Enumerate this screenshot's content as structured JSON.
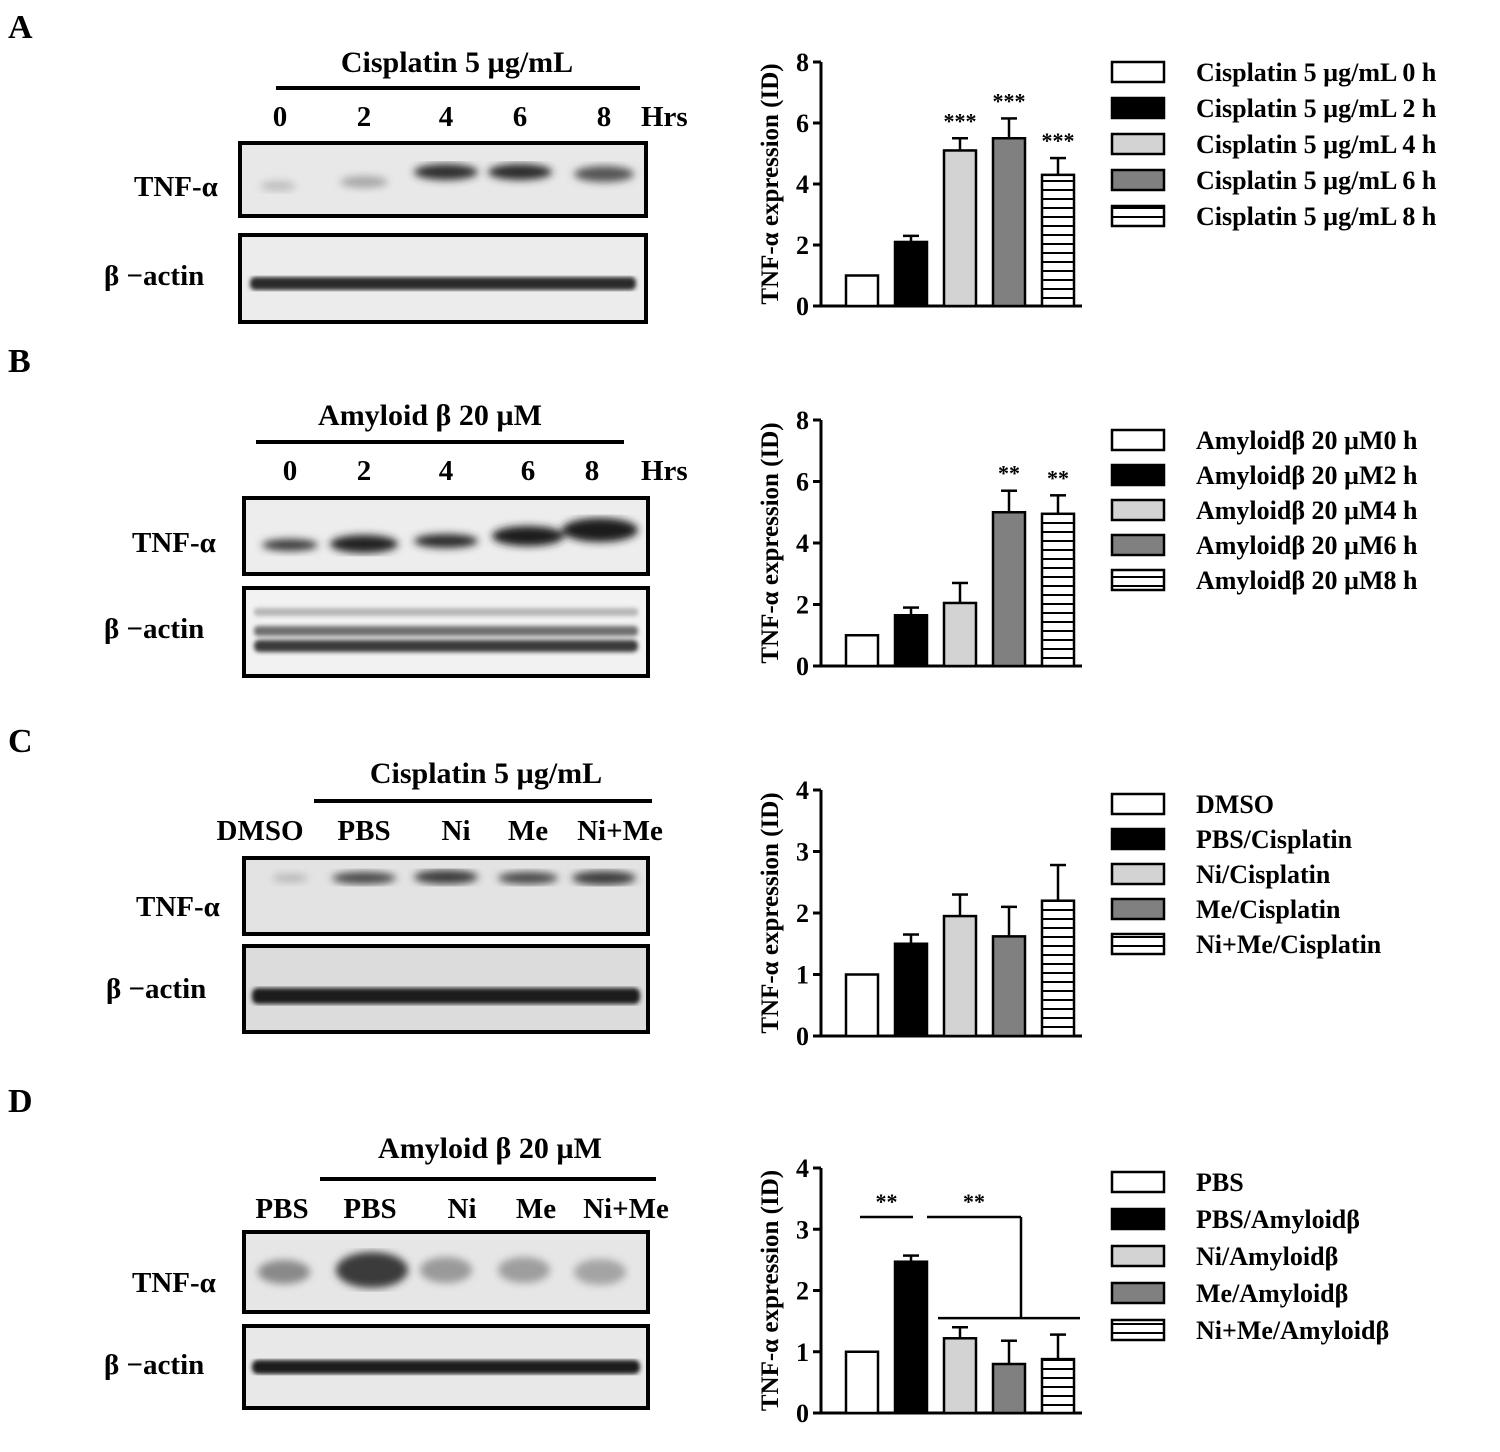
{
  "colors": {
    "white": "#ffffff",
    "black": "#000000",
    "light_gray": "#d3d3d3",
    "dark_gray": "#808080",
    "blot_bg": "#e6e6e6",
    "band": "#2a2a2a"
  },
  "panels": [
    {
      "letter": "A",
      "blot": {
        "treatment": "Cisplatin 5 µg/mL",
        "lanes": [
          "0",
          "2",
          "4",
          "6",
          "8"
        ],
        "unit": "Hrs",
        "row1": "TNF-α",
        "row2": "β −actin"
      }
    },
    {
      "letter": "B",
      "blot": {
        "treatment": "Amyloid  β 20 µM",
        "lanes": [
          "0",
          "2",
          "4",
          "6",
          "8"
        ],
        "unit": "Hrs",
        "row1": "TNF-α",
        "row2": "β −actin"
      }
    },
    {
      "letter": "C",
      "blot": {
        "treatment": "Cisplatin 5 µg/mL",
        "control": "DMSO",
        "lanes": [
          "PBS",
          "Ni",
          "Me",
          "Ni+Me"
        ],
        "row1": "TNF-α",
        "row2": "β −actin"
      }
    },
    {
      "letter": "D",
      "blot": {
        "treatment": "Amyloid  β 20 µM",
        "control": "PBS",
        "lanes": [
          "PBS",
          "Ni",
          "Me",
          "Ni+Me"
        ],
        "row1": "TNF-α",
        "row2": "β −actin"
      }
    }
  ],
  "chart_data": [
    {
      "type": "bar",
      "panel": "A",
      "ylabel": "TNF-α  expression (ID)",
      "ylim": [
        0,
        8
      ],
      "yticks": [
        "0",
        "2",
        "4",
        "6",
        "8"
      ],
      "categories": [
        "Cisplatin 5 µg/mL 0 h",
        "Cisplatin 5 µg/mL 2 h",
        "Cisplatin 5 µg/mL 4 h",
        "Cisplatin 5 µg/mL 6 h",
        "Cisplatin 5 µg/mL 8 h"
      ],
      "values": [
        1.0,
        2.1,
        5.1,
        5.5,
        4.3
      ],
      "errors": [
        0,
        0.2,
        0.4,
        0.65,
        0.55
      ],
      "fills": [
        "white",
        "black",
        "lightgray",
        "darkgray",
        "hstripe"
      ],
      "annotations": [
        "",
        "",
        "***",
        "***",
        "***"
      ],
      "legend": [
        "Cisplatin 5 µg/mL 0 h",
        "Cisplatin 5 µg/mL 2 h",
        "Cisplatin 5 µg/mL 4 h",
        "Cisplatin 5 µg/mL 6 h",
        "Cisplatin 5 µg/mL 8 h"
      ]
    },
    {
      "type": "bar",
      "panel": "B",
      "ylabel": "TNF-α  expression (ID)",
      "ylim": [
        0,
        8
      ],
      "yticks": [
        "0",
        "2",
        "4",
        "6",
        "8"
      ],
      "categories": [
        "Amyloid β 20 µM 0 h",
        "Amyloid β 20 µM 2 h",
        "Amyloid β 20 µM 4 h",
        "Amyloid β 20 µM 6 h",
        "Amyloid β 20 µM 8 h"
      ],
      "values": [
        1.0,
        1.65,
        2.05,
        5.0,
        4.95
      ],
      "errors": [
        0,
        0.25,
        0.65,
        0.7,
        0.6
      ],
      "fills": [
        "white",
        "black",
        "lightgray",
        "darkgray",
        "hstripe"
      ],
      "annotations": [
        "",
        "",
        "",
        "**",
        "**"
      ],
      "legend": [
        "Amyloidβ 20 µM0 h",
        "Amyloidβ 20 µM2 h",
        "Amyloidβ 20 µM4 h",
        "Amyloidβ 20 µM6 h",
        "Amyloidβ 20 µM8 h"
      ]
    },
    {
      "type": "bar",
      "panel": "C",
      "ylabel": "TNF-α  expression (ID)",
      "ylim": [
        0,
        4
      ],
      "yticks": [
        "0",
        "1",
        "2",
        "3",
        "4"
      ],
      "categories": [
        "DMSO",
        "PBS/Cisplatin",
        "Ni/Cisplatin",
        "Me/Cisplatin",
        "Ni+Me/Cisplatin"
      ],
      "values": [
        1.0,
        1.5,
        1.95,
        1.62,
        2.2
      ],
      "errors": [
        0,
        0.15,
        0.35,
        0.48,
        0.58
      ],
      "fills": [
        "white",
        "black",
        "lightgray",
        "darkgray",
        "hstripe"
      ],
      "annotations": [
        "",
        "",
        "",
        "",
        ""
      ],
      "legend": [
        "DMSO",
        "PBS/Cisplatin",
        "Ni/Cisplatin",
        "Me/Cisplatin",
        "Ni+Me/Cisplatin"
      ]
    },
    {
      "type": "bar",
      "panel": "D",
      "ylabel": "TNF-α  expression (ID)",
      "ylim": [
        0,
        4
      ],
      "yticks": [
        "0",
        "1",
        "2",
        "3",
        "4"
      ],
      "categories": [
        "PBS",
        "PBS/Amyloid β",
        "Ni/Amyloid β",
        "Me/Amyloid β",
        "Ni+Me/Amyloid β"
      ],
      "values": [
        1.0,
        2.47,
        1.22,
        0.8,
        0.88
      ],
      "errors": [
        0,
        0.1,
        0.18,
        0.38,
        0.4
      ],
      "fills": [
        "white",
        "black",
        "lightgray",
        "darkgray",
        "hstripe"
      ],
      "annotations": [
        "",
        "",
        "",
        "",
        ""
      ],
      "brackets": [
        {
          "label": "**",
          "from": 0,
          "to": 1,
          "level": 3.2
        },
        {
          "label": "**",
          "from": 1,
          "to": "2-4",
          "level": 3.2,
          "group_level": 1.55
        }
      ],
      "legend": [
        "PBS",
        "PBS/Amyloidβ",
        "Ni/Amyloidβ",
        "Me/Amyloidβ",
        "Ni+Me/Amyloidβ"
      ]
    }
  ]
}
